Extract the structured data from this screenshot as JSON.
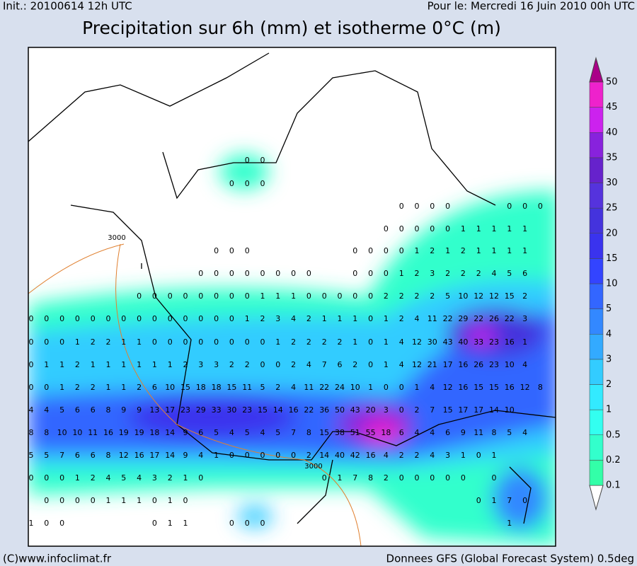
{
  "header": {
    "init": "Init.: 20100614 12h UTC",
    "valid": "Pour le: Mercredi 16 Juin 2010 00h UTC",
    "title": "Precipitation sur 6h (mm) et isotherme 0°C (m)"
  },
  "footer": {
    "credit": "(C)www.infoclimat.fr",
    "source": "Donnees GFS (Global Forecast System) 0.5deg"
  },
  "colorbar": {
    "levels": [
      0.1,
      0.2,
      0.5,
      1,
      2,
      3,
      4,
      5,
      10,
      15,
      20,
      25,
      30,
      35,
      40,
      45,
      50
    ],
    "colors": [
      "#33ffa8",
      "#33ffcc",
      "#33fff0",
      "#33eaff",
      "#33ccff",
      "#33aaff",
      "#3388ff",
      "#3366ff",
      "#3344ff",
      "#3a33ee",
      "#4433dd",
      "#5533dd",
      "#6622cc",
      "#8822dd",
      "#cc22ee",
      "#ee22cc"
    ]
  },
  "map": {
    "contour_labels": [
      "3000",
      "3000"
    ],
    "grid_rows": [
      [
        null,
        null,
        null,
        null,
        null,
        null,
        null,
        null,
        null,
        null,
        null,
        null,
        null,
        null,
        0,
        0
      ],
      [
        null,
        null,
        null,
        null,
        null,
        null,
        null,
        null,
        null,
        null,
        null,
        null,
        null,
        0,
        0,
        0
      ],
      [
        null,
        null,
        null,
        null,
        null,
        null,
        null,
        null,
        null,
        null,
        null,
        null,
        null,
        null,
        null,
        null,
        null,
        null,
        null,
        null,
        null,
        null,
        null,
        null,
        0,
        0,
        0,
        0,
        null,
        null,
        null,
        0,
        0,
        0,
        0
      ],
      [
        null,
        null,
        null,
        null,
        null,
        null,
        null,
        null,
        null,
        null,
        null,
        null,
        null,
        null,
        null,
        null,
        null,
        null,
        null,
        null,
        null,
        null,
        null,
        0,
        0,
        0,
        0,
        0,
        1,
        1,
        1,
        1,
        1
      ],
      [
        null,
        null,
        null,
        null,
        null,
        null,
        null,
        null,
        null,
        null,
        null,
        null,
        0,
        0,
        0,
        null,
        null,
        null,
        null,
        null,
        null,
        0,
        0,
        0,
        0,
        1,
        2,
        1,
        2,
        1,
        1,
        1,
        1
      ],
      [
        null,
        null,
        null,
        null,
        null,
        null,
        null,
        null,
        null,
        null,
        null,
        0,
        0,
        0,
        0,
        0,
        0,
        0,
        0,
        null,
        null,
        0,
        0,
        0,
        1,
        2,
        3,
        2,
        2,
        2,
        4,
        5,
        6
      ],
      [
        null,
        null,
        null,
        null,
        null,
        null,
        null,
        0,
        0,
        0,
        0,
        0,
        0,
        0,
        0,
        1,
        1,
        1,
        0,
        0,
        0,
        0,
        0,
        2,
        2,
        2,
        2,
        5,
        10,
        12,
        12,
        15,
        2
      ],
      [
        0,
        0,
        0,
        0,
        0,
        0,
        0,
        0,
        0,
        0,
        0,
        0,
        0,
        0,
        1,
        2,
        3,
        4,
        2,
        1,
        1,
        1,
        0,
        1,
        2,
        4,
        11,
        22,
        29,
        22,
        26,
        22,
        3
      ],
      [
        0,
        0,
        0,
        1,
        2,
        2,
        1,
        1,
        0,
        0,
        0,
        0,
        0,
        0,
        0,
        0,
        1,
        2,
        2,
        2,
        2,
        1,
        0,
        1,
        4,
        12,
        30,
        43,
        40,
        33,
        23,
        16,
        1
      ],
      [
        0,
        1,
        1,
        2,
        1,
        1,
        1,
        1,
        1,
        1,
        2,
        3,
        3,
        2,
        2,
        0,
        0,
        2,
        4,
        7,
        6,
        2,
        0,
        1,
        4,
        12,
        21,
        17,
        16,
        26,
        23,
        10,
        4
      ],
      [
        0,
        0,
        1,
        2,
        2,
        1,
        1,
        2,
        6,
        10,
        15,
        18,
        18,
        15,
        11,
        5,
        2,
        4,
        11,
        22,
        24,
        10,
        1,
        0,
        0,
        1,
        4,
        12,
        16,
        15,
        15,
        16,
        12,
        8
      ],
      [
        4,
        4,
        5,
        6,
        6,
        8,
        9,
        9,
        13,
        17,
        23,
        29,
        33,
        30,
        23,
        15,
        14,
        16,
        22,
        36,
        50,
        43,
        20,
        3,
        0,
        2,
        7,
        15,
        17,
        17,
        14,
        10
      ],
      [
        8,
        8,
        10,
        10,
        11,
        16,
        19,
        19,
        18,
        14,
        9,
        6,
        5,
        4,
        5,
        4,
        5,
        7,
        8,
        15,
        38,
        51,
        55,
        18,
        6,
        4,
        4,
        6,
        9,
        11,
        8,
        5,
        4
      ],
      [
        5,
        5,
        7,
        6,
        6,
        8,
        12,
        16,
        17,
        14,
        9,
        4,
        1,
        0,
        0,
        0,
        0,
        0,
        2,
        14,
        40,
        42,
        16,
        4,
        2,
        2,
        4,
        3,
        1,
        0,
        1
      ],
      [
        0,
        0,
        0,
        1,
        2,
        4,
        5,
        4,
        3,
        2,
        1,
        0,
        null,
        null,
        null,
        null,
        null,
        null,
        null,
        0,
        1,
        7,
        8,
        2,
        0,
        0,
        0,
        0,
        0,
        null,
        0
      ],
      [
        null,
        0,
        0,
        0,
        0,
        1,
        1,
        1,
        0,
        1,
        0,
        null,
        null,
        null,
        null,
        null,
        null,
        null,
        null,
        null,
        null,
        null,
        null,
        null,
        null,
        null,
        null,
        null,
        null,
        0,
        1,
        7,
        0
      ],
      [
        1,
        0,
        0,
        null,
        null,
        null,
        null,
        null,
        0,
        1,
        1,
        null,
        null,
        0,
        0,
        0,
        null,
        null,
        null,
        null,
        null,
        null,
        null,
        null,
        null,
        null,
        null,
        null,
        null,
        null,
        null,
        1
      ]
    ]
  }
}
